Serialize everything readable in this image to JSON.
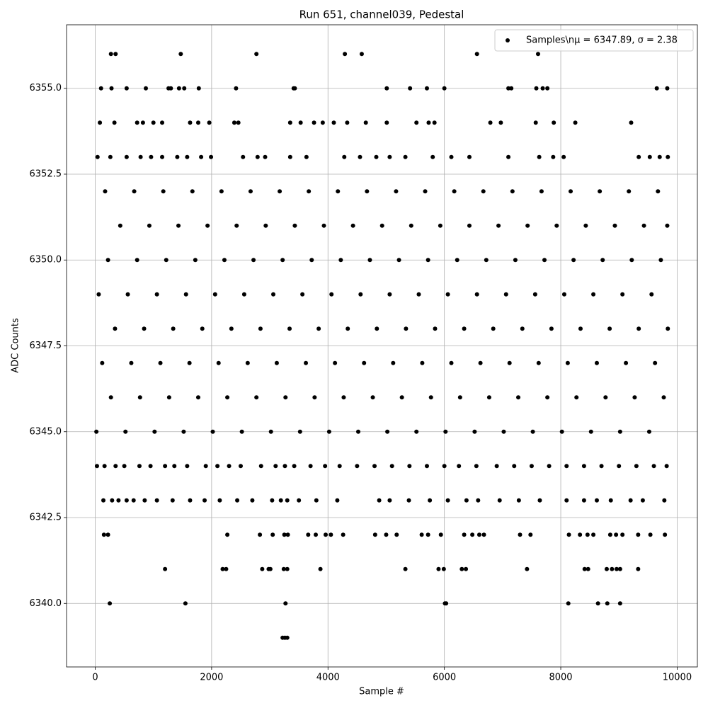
{
  "chart_data": {
    "type": "scatter",
    "title": "Run 651, channel039, Pedestal",
    "xlabel": "Sample #",
    "ylabel": "ADC Counts",
    "xlim": [
      -492.75,
      10347.75
    ],
    "ylim": [
      6338.15,
      6356.85
    ],
    "xticks": [
      0,
      2000,
      4000,
      6000,
      8000,
      10000
    ],
    "yticks": [
      {
        "value": 6340,
        "label": "6340.0"
      },
      {
        "value": 6342.5,
        "label": "6342.5"
      },
      {
        "value": 6345,
        "label": "6345.0"
      },
      {
        "value": 6347.5,
        "label": "6347.5"
      },
      {
        "value": 6350,
        "label": "6350.0"
      },
      {
        "value": 6352.5,
        "label": "6352.5"
      },
      {
        "value": 6355,
        "label": "6355.0"
      }
    ],
    "grid": true,
    "legend": "upper right",
    "series": [
      {
        "name": "Samples\\nμ = 6347.89, σ = 2.38",
        "color": "#000000",
        "x": [
          270,
          350,
          1470,
          2770,
          4290,
          4580,
          6560,
          7610,
          3220,
          3260,
          3300,
          250,
          1550,
          3270,
          6010,
          6030,
          8130,
          8640,
          8800,
          9020,
          1200,
          2190,
          2250,
          2870,
          2980,
          3010,
          3240,
          3300,
          3870,
          5330,
          5900,
          5990,
          6300,
          6370,
          7420,
          8410,
          8470,
          8790,
          8880,
          8960,
          9020,
          9330,
          150,
          220,
          2270,
          2830,
          3050,
          3250,
          3310,
          3660,
          3790,
          3960,
          4050,
          4260,
          4810,
          5000,
          5180,
          5610,
          5720,
          5940,
          6340,
          6480,
          6600,
          6680,
          7300,
          7480,
          8140,
          8330,
          8460,
          8560,
          8850,
          8950,
          9060,
          9330,
          9540,
          9790,
          100,
          280,
          540,
          870,
          1260,
          1300,
          1440,
          1530,
          1780,
          2420,
          3410,
          3430,
          5010,
          5410,
          5700,
          6000,
          7100,
          7150,
          7580,
          7690,
          7770,
          9650,
          9830,
          140,
          290,
          400,
          540,
          660,
          850,
          1060,
          1330,
          1630,
          1880,
          2140,
          2440,
          2700,
          3040,
          3190,
          3300,
          3500,
          3800,
          4160,
          4880,
          5060,
          5390,
          5750,
          6060,
          6380,
          6580,
          6950,
          7280,
          7640,
          8100,
          8400,
          8620,
          8860,
          9200,
          9410,
          9780,
          80,
          330,
          720,
          820,
          1000,
          1150,
          1630,
          1770,
          1960,
          2390,
          2460,
          3350,
          3530,
          3760,
          3910,
          4100,
          4330,
          4650,
          5010,
          5520,
          5730,
          5830,
          6790,
          6970,
          7570,
          7880,
          8250,
          9210,
          40,
          260,
          540,
          780,
          960,
          1150,
          1410,
          1580,
          1820,
          1990,
          2540,
          2790,
          2920,
          3350,
          3630,
          4280,
          4550,
          4830,
          5060,
          5330,
          5800,
          6120,
          6430,
          7100,
          7630,
          7870,
          8050,
          9340,
          9530,
          9700,
          9840,
          30,
          160,
          350,
          500,
          760,
          950,
          1200,
          1360,
          1580,
          1900,
          2100,
          2300,
          2500,
          2850,
          3100,
          3260,
          3420,
          3700,
          3950,
          4200,
          4500,
          4800,
          5100,
          5400,
          5700,
          6000,
          6250,
          6550,
          6900,
          7200,
          7500,
          7800,
          8100,
          8400,
          8700,
          9000,
          9300,
          9600,
          9820,
          20,
          520,
          1020,
          1520,
          2020,
          2520,
          3020,
          3520,
          4020,
          4520,
          5020,
          5520,
          6020,
          6520,
          7020,
          7520,
          8020,
          8520,
          9020,
          9520,
          270,
          770,
          1270,
          1770,
          2270,
          2770,
          3270,
          3770,
          4270,
          4770,
          5270,
          5770,
          6270,
          6770,
          7270,
          7770,
          8270,
          8770,
          9270,
          9770,
          120,
          620,
          1120,
          1620,
          2120,
          2620,
          3120,
          3620,
          4120,
          4620,
          5120,
          5620,
          6120,
          6620,
          7120,
          7620,
          8120,
          8620,
          9120,
          9620,
          340,
          840,
          1340,
          1840,
          2340,
          2840,
          3340,
          3840,
          4340,
          4840,
          5340,
          5840,
          6340,
          6840,
          7340,
          7840,
          8340,
          8840,
          9340,
          9840,
          60,
          560,
          1060,
          1560,
          2060,
          2560,
          3060,
          3560,
          4060,
          4560,
          5060,
          5560,
          6060,
          6560,
          7060,
          7560,
          8060,
          8560,
          9060,
          9560,
          220,
          720,
          1220,
          1720,
          2220,
          2720,
          3220,
          3720,
          4220,
          4720,
          5220,
          5720,
          6220,
          6720,
          7220,
          7720,
          8220,
          8720,
          9220,
          9720,
          430,
          930,
          1430,
          1930,
          2430,
          2930,
          3430,
          3930,
          4430,
          4930,
          5430,
          5930,
          6430,
          6930,
          7430,
          7930,
          8430,
          8930,
          9430,
          9830,
          170,
          670,
          1170,
          1670,
          2170,
          2670,
          3170,
          3670,
          4170,
          4670,
          5170,
          5670,
          6170,
          6670,
          7170,
          7670,
          8170,
          8670,
          9170,
          9670
        ],
        "values": [
          6356,
          6356,
          6356,
          6356,
          6356,
          6356,
          6356,
          6356,
          6339,
          6339,
          6339,
          6340,
          6340,
          6340,
          6340,
          6340,
          6340,
          6340,
          6340,
          6340,
          6341,
          6341,
          6341,
          6341,
          6341,
          6341,
          6341,
          6341,
          6341,
          6341,
          6341,
          6341,
          6341,
          6341,
          6341,
          6341,
          6341,
          6341,
          6341,
          6341,
          6341,
          6341,
          6342,
          6342,
          6342,
          6342,
          6342,
          6342,
          6342,
          6342,
          6342,
          6342,
          6342,
          6342,
          6342,
          6342,
          6342,
          6342,
          6342,
          6342,
          6342,
          6342,
          6342,
          6342,
          6342,
          6342,
          6342,
          6342,
          6342,
          6342,
          6342,
          6342,
          6342,
          6342,
          6342,
          6342,
          6355,
          6355,
          6355,
          6355,
          6355,
          6355,
          6355,
          6355,
          6355,
          6355,
          6355,
          6355,
          6355,
          6355,
          6355,
          6355,
          6355,
          6355,
          6355,
          6355,
          6355,
          6355,
          6355,
          6343,
          6343,
          6343,
          6343,
          6343,
          6343,
          6343,
          6343,
          6343,
          6343,
          6343,
          6343,
          6343,
          6343,
          6343,
          6343,
          6343,
          6343,
          6343,
          6343,
          6343,
          6343,
          6343,
          6343,
          6343,
          6343,
          6343,
          6343,
          6343,
          6343,
          6343,
          6343,
          6343,
          6343,
          6343,
          6343,
          6354,
          6354,
          6354,
          6354,
          6354,
          6354,
          6354,
          6354,
          6354,
          6354,
          6354,
          6354,
          6354,
          6354,
          6354,
          6354,
          6354,
          6354,
          6354,
          6354,
          6354,
          6354,
          6354,
          6354,
          6354,
          6354,
          6354,
          6354,
          6353,
          6353,
          6353,
          6353,
          6353,
          6353,
          6353,
          6353,
          6353,
          6353,
          6353,
          6353,
          6353,
          6353,
          6353,
          6353,
          6353,
          6353,
          6353,
          6353,
          6353,
          6353,
          6353,
          6353,
          6353,
          6353,
          6353,
          6353,
          6353,
          6353,
          6353,
          6344,
          6344,
          6344,
          6344,
          6344,
          6344,
          6344,
          6344,
          6344,
          6344,
          6344,
          6344,
          6344,
          6344,
          6344,
          6344,
          6344,
          6344,
          6344,
          6344,
          6344,
          6344,
          6344,
          6344,
          6344,
          6344,
          6344,
          6344,
          6344,
          6344,
          6344,
          6344,
          6344,
          6344,
          6344,
          6344,
          6344,
          6344,
          6344,
          6345,
          6345,
          6345,
          6345,
          6345,
          6345,
          6345,
          6345,
          6345,
          6345,
          6345,
          6345,
          6345,
          6345,
          6345,
          6345,
          6345,
          6345,
          6345,
          6345,
          6346,
          6346,
          6346,
          6346,
          6346,
          6346,
          6346,
          6346,
          6346,
          6346,
          6346,
          6346,
          6346,
          6346,
          6346,
          6346,
          6346,
          6346,
          6346,
          6346,
          6347,
          6347,
          6347,
          6347,
          6347,
          6347,
          6347,
          6347,
          6347,
          6347,
          6347,
          6347,
          6347,
          6347,
          6347,
          6347,
          6347,
          6347,
          6347,
          6347,
          6348,
          6348,
          6348,
          6348,
          6348,
          6348,
          6348,
          6348,
          6348,
          6348,
          6348,
          6348,
          6348,
          6348,
          6348,
          6348,
          6348,
          6348,
          6348,
          6348,
          6349,
          6349,
          6349,
          6349,
          6349,
          6349,
          6349,
          6349,
          6349,
          6349,
          6349,
          6349,
          6349,
          6349,
          6349,
          6349,
          6349,
          6349,
          6349,
          6349,
          6350,
          6350,
          6350,
          6350,
          6350,
          6350,
          6350,
          6350,
          6350,
          6350,
          6350,
          6350,
          6350,
          6350,
          6350,
          6350,
          6350,
          6350,
          6350,
          6350,
          6351,
          6351,
          6351,
          6351,
          6351,
          6351,
          6351,
          6351,
          6351,
          6351,
          6351,
          6351,
          6351,
          6351,
          6351,
          6351,
          6351,
          6351,
          6351,
          6351,
          6352,
          6352,
          6352,
          6352,
          6352,
          6352,
          6352,
          6352,
          6352,
          6352,
          6352,
          6352,
          6352,
          6352,
          6352,
          6352,
          6352,
          6352,
          6352,
          6352
        ]
      }
    ]
  }
}
